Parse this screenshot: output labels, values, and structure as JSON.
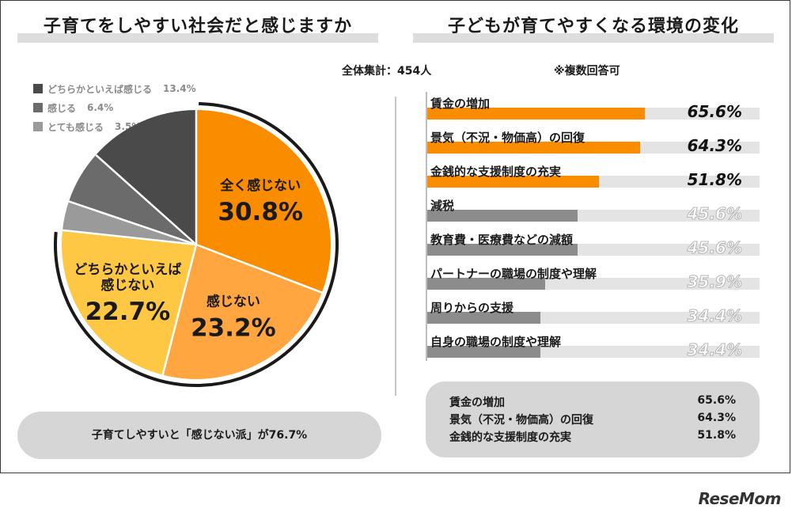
{
  "left_panel": {
    "title": "子育てをしやすい社会だと感じますか",
    "summary": "子育てしやすいと「感じない派」が76.7%"
  },
  "right_panel": {
    "title": "子どもが育てやすくなる環境の変化",
    "top3": [
      {
        "label": "賃金の増加",
        "value": "65.6%"
      },
      {
        "label": "景気（不況・物価高）の回復",
        "value": "64.3%"
      },
      {
        "label": "金銭的な支援制度の充実",
        "value": "51.8%"
      }
    ]
  },
  "meta": {
    "total": "全体集計：454人",
    "note": "※複数回答可"
  },
  "logo": "ReseMom",
  "colors": {
    "orange_dark": "#fa8c00",
    "orange_mid": "#ffa640",
    "yellow": "#ffc844",
    "gray_dark": "#4a4a4a",
    "gray_mid": "#6b6b6b",
    "gray_light": "#9a9a9a",
    "bar_gray": "#8c8c8c",
    "track": "#e4e4e4"
  },
  "chart_data": [
    {
      "type": "pie",
      "slices": [
        {
          "label": "全く感じない",
          "value": 30.8,
          "display": "30.8%",
          "color": "#fa8c00",
          "in_legend": false
        },
        {
          "label": "感じない",
          "value": 23.2,
          "display": "23.2%",
          "color": "#ffa640",
          "in_legend": false
        },
        {
          "label": "どちらかといえば感じない",
          "label_lines": [
            "どちらかといえば",
            "感じない"
          ],
          "value": 22.7,
          "display": "22.7%",
          "color": "#ffc844",
          "in_legend": false
        },
        {
          "label": "とても感じる",
          "value": 3.5,
          "display": "3.5%",
          "color": "#9a9a9a",
          "in_legend": true
        },
        {
          "label": "感じる",
          "value": 6.4,
          "display": "6.4%",
          "color": "#6b6b6b",
          "in_legend": true
        },
        {
          "label": "どちらかといえば感じる",
          "value": 13.4,
          "display": "13.4%",
          "color": "#4a4a4a",
          "in_legend": true
        }
      ],
      "legend_order": [
        "どちらかといえば感じる",
        "感じる",
        "とても感じる"
      ]
    },
    {
      "type": "bar",
      "orientation": "horizontal",
      "categories": [
        "賃金の増加",
        "景気（不況・物価高）の回復",
        "金銭的な支援制度の充実",
        "減税",
        "教育費・医療費などの減額",
        "パートナーの職場の制度や理解",
        "周りからの支援",
        "自身の職場の制度や理解"
      ],
      "values": [
        65.6,
        64.3,
        51.8,
        45.6,
        45.6,
        35.9,
        34.4,
        34.4
      ],
      "labels": [
        "65.6%",
        "64.3%",
        "51.8%",
        "45.6%",
        "45.6%",
        "35.9%",
        "34.4%",
        "34.4%"
      ],
      "highlighted_top": 3,
      "xlim": [
        0,
        100
      ]
    }
  ]
}
